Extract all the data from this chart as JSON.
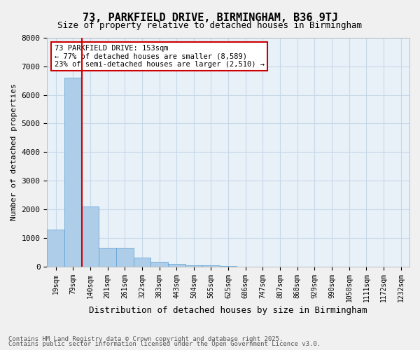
{
  "title1": "73, PARKFIELD DRIVE, BIRMINGHAM, B36 9TJ",
  "title2": "Size of property relative to detached houses in Birmingham",
  "xlabel": "Distribution of detached houses by size in Birmingham",
  "ylabel": "Number of detached properties",
  "annotation_title": "73 PARKFIELD DRIVE: 153sqm",
  "annotation_line1": "← 77% of detached houses are smaller (8,589)",
  "annotation_line2": "23% of semi-detached houses are larger (2,510) →",
  "bar_color": "#aecde8",
  "bar_edge_color": "#5a9fd4",
  "vline_color": "#cc0000",
  "annotation_box_color": "#cc0000",
  "grid_color": "#c8d8e8",
  "background_color": "#e8f0f8",
  "footer1": "Contains HM Land Registry data © Crown copyright and database right 2025.",
  "footer2": "Contains public sector information licensed under the Open Government Licence v3.0.",
  "bins": [
    "19sqm",
    "79sqm",
    "140sqm",
    "201sqm",
    "261sqm",
    "322sqm",
    "383sqm",
    "443sqm",
    "504sqm",
    "565sqm",
    "625sqm",
    "686sqm",
    "747sqm",
    "807sqm",
    "868sqm",
    "929sqm",
    "990sqm",
    "1050sqm",
    "1111sqm",
    "1172sqm",
    "1232sqm"
  ],
  "values": [
    1300,
    6600,
    2100,
    650,
    650,
    300,
    150,
    100,
    50,
    50,
    5,
    2,
    2,
    1,
    1,
    1,
    0,
    0,
    0,
    0,
    0
  ],
  "vline_position": 2,
  "ylim": [
    0,
    8000
  ],
  "yticks": [
    0,
    1000,
    2000,
    3000,
    4000,
    5000,
    6000,
    7000,
    8000
  ]
}
